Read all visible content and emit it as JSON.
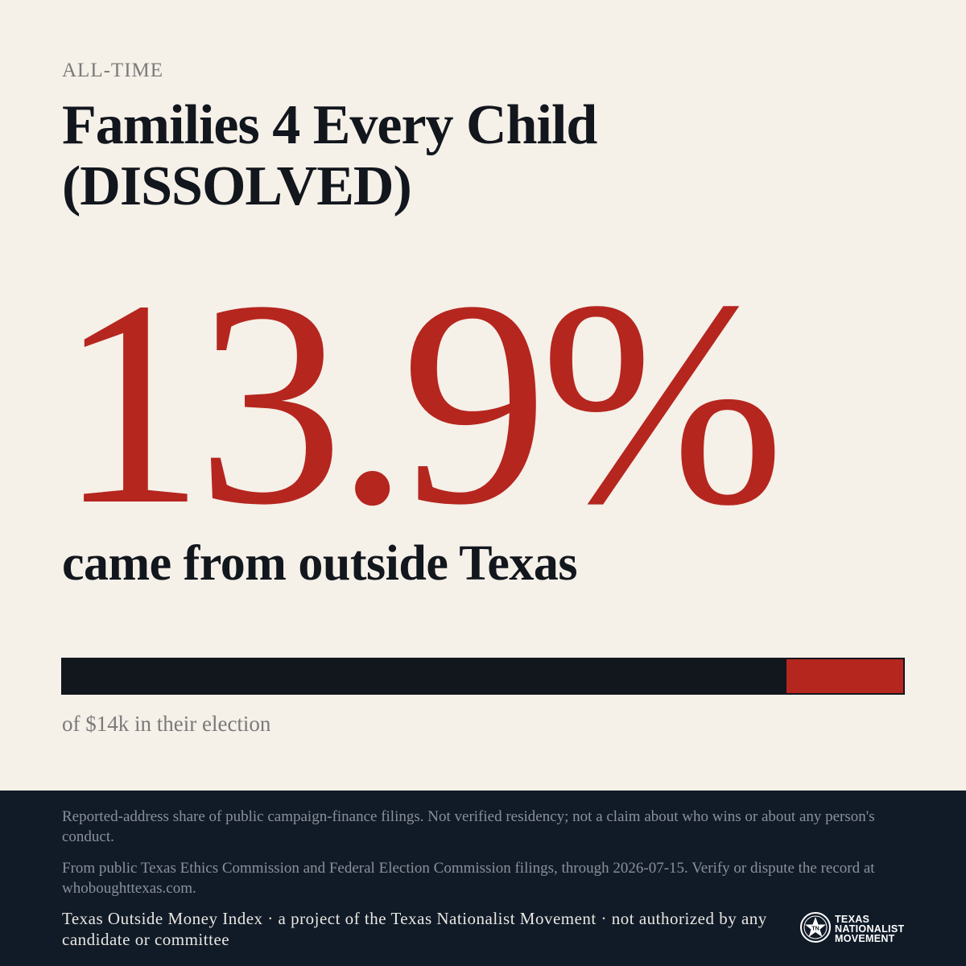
{
  "kicker": "ALL-TIME",
  "title": "Families 4 Every Child (DISSOLVED)",
  "headline_value": "13.9%",
  "headline_caption": "came from outside Texas",
  "bar": {
    "outside_fraction": 0.139,
    "caption": "of $14k in their election",
    "colors": {
      "inside": "#12161d",
      "outside": "#b5261f"
    }
  },
  "footer": {
    "disclaimer_1": "Reported-address share of public campaign-finance filings. Not verified residency; not a claim about who wins or about any person's conduct.",
    "disclaimer_2": "From public Texas Ethics Commission and Federal Election Commission filings, through 2026-07-15. Verify or dispute the record at whoboughttexas.com.",
    "credit": "Texas Outside Money Index · a project of the Texas Nationalist Movement · not authorized by any candidate or committee",
    "logo": {
      "icon": "star-seal-icon",
      "line1": "TEXAS",
      "line2": "NATIONALIST",
      "line3": "MOVEMENT"
    }
  },
  "colors": {
    "background": "#f5f0e8",
    "accent": "#b5261f",
    "ink": "#12161d",
    "footer": "#111b28"
  }
}
